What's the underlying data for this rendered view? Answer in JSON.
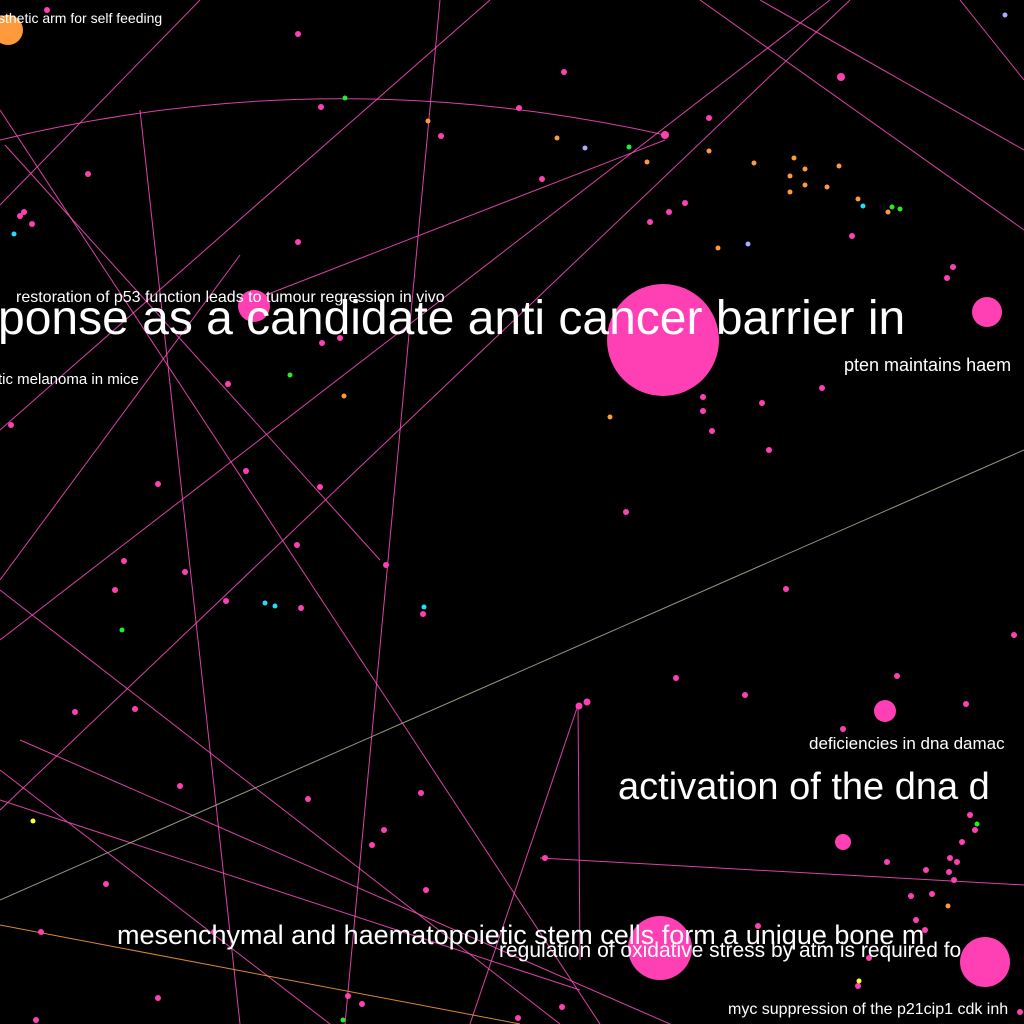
{
  "colors": {
    "background": "#000000",
    "node_pink": "#ff3fb4",
    "node_orange": "#ff9a3c",
    "node_green": "#22ee22",
    "node_cyan": "#22ddff",
    "node_lavender": "#aaaaff",
    "node_yellow": "#ffff33",
    "edge_pink": "#ff4fc0",
    "edge_gray": "#a8b89a",
    "edge_orange": "#ffa040",
    "label": "#ffffff"
  },
  "labels": [
    {
      "id": "prosthetic",
      "text": "sthetic arm for self feeding"
    },
    {
      "id": "p53",
      "text": "restoration of p53 function leads to tumour regression in vivo"
    },
    {
      "id": "dna-response",
      "text": "ponse as a candidate anti cancer barrier in"
    },
    {
      "id": "pten",
      "text": "pten maintains haem"
    },
    {
      "id": "melanoma",
      "text": "tic melanoma in mice"
    },
    {
      "id": "dna-damage",
      "text": "deficiencies in dna damac"
    },
    {
      "id": "activation",
      "text": "activation of the dna d"
    },
    {
      "id": "mesenchymal",
      "text": "mesenchymal and haematopoietic stem cells form a unique bone m"
    },
    {
      "id": "oxidative",
      "text": "regulation of oxidative stress by atm is required fo"
    },
    {
      "id": "myc",
      "text": "myc suppression of the p21cip1 cdk inh"
    }
  ]
}
